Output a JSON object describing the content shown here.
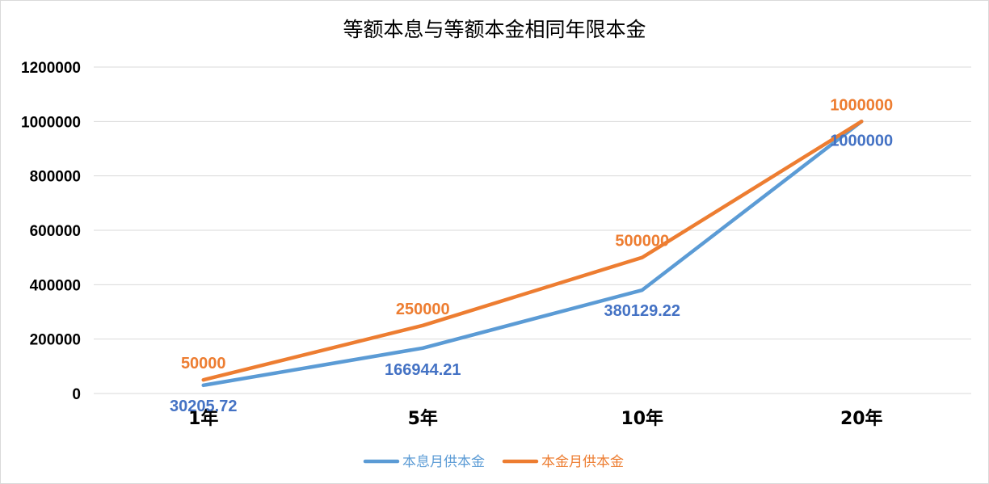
{
  "chart_data": {
    "type": "line",
    "title": "等额本息与等额本金相同年限本金",
    "categories": [
      "1年",
      "5年",
      "10年",
      "20年"
    ],
    "ylim": [
      0,
      1200000
    ],
    "yticks": [
      "0",
      "200000",
      "400000",
      "600000",
      "800000",
      "1000000",
      "1200000"
    ],
    "grid": true,
    "legend_position": "bottom",
    "series": [
      {
        "name": "本息月供本金",
        "color": "#5b9bd5",
        "values": [
          30205.72,
          166944.21,
          380129.22,
          1000000
        ],
        "labels": [
          "30205.72",
          "166944.21",
          "380129.22",
          "1000000"
        ]
      },
      {
        "name": "本金月供本金",
        "color": "#ed7d31",
        "values": [
          50000,
          250000,
          500000,
          1000000
        ],
        "labels": [
          "50000",
          "250000",
          "500000",
          "1000000"
        ]
      }
    ]
  }
}
